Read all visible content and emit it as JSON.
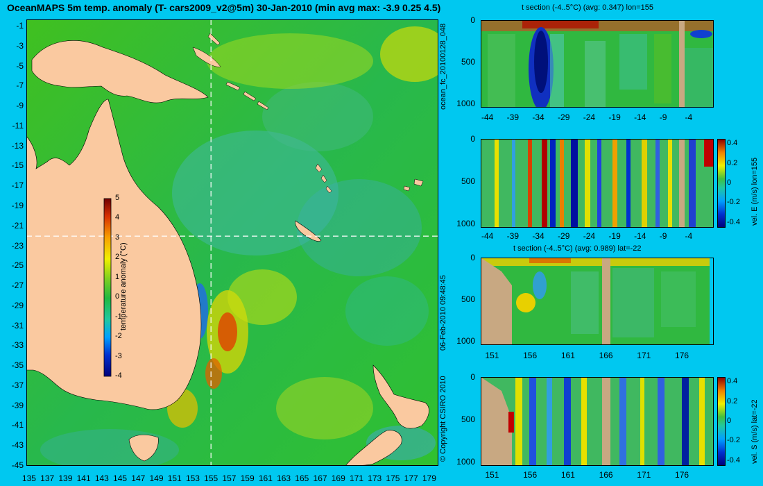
{
  "title": "OceanMAPS 5m temp. anomaly (T- cars2009_v2@5m) 30-Jan-2010 (min avg max: -3.9 0.25 4.5)",
  "map": {
    "lat_ticks": [
      "-1",
      "-3",
      "-5",
      "-7",
      "-9",
      "-11",
      "-13",
      "-15",
      "-17",
      "-19",
      "-21",
      "-23",
      "-25",
      "-27",
      "-29",
      "-31",
      "-33",
      "-35",
      "-37",
      "-39",
      "-41",
      "-43",
      "-45"
    ],
    "lon_ticks": [
      "135",
      "137",
      "139",
      "141",
      "143",
      "145",
      "147",
      "149",
      "151",
      "153",
      "155",
      "157",
      "159",
      "161",
      "163",
      "165",
      "167",
      "169",
      "171",
      "173",
      "175",
      "177",
      "179"
    ],
    "colorbar_ticks": [
      "5",
      "4",
      "3",
      "2",
      "1",
      "0",
      "-1",
      "-2",
      "-3",
      "-4"
    ],
    "colorbar_label": "temperature anomaly (°C)",
    "section_lon": 155,
    "section_lat": -22
  },
  "panels": {
    "p1_title": "t section (-4..5°C) (avg: 0.347) lon=155",
    "p3_title": "t section (-4..5°C) (avg: 0.989) lat=-22",
    "depth_ticks": [
      "0",
      "500",
      "1000"
    ],
    "lon_section_ticks": [
      "-44",
      "-39",
      "-34",
      "-29",
      "-24",
      "-19",
      "-14",
      "-9",
      "-4"
    ],
    "lat_section_ticks": [
      "151",
      "156",
      "161",
      "166",
      "171",
      "176"
    ],
    "vel_ticks": [
      "0.4",
      "0.2",
      "0",
      "-0.2",
      "-0.4"
    ],
    "vel_e_label": "vel. E (m/s) lon=155",
    "vel_s_label": "vel. S (m/s) lat=-22"
  },
  "side_text": {
    "run_id": "ocean_fc_20100128_048",
    "date": "06-Feb-2010 09:48:45",
    "copyright": "© Copyright CSIRO 2010"
  },
  "colors": {
    "background": "#00c8f0",
    "land": "#fac9a0",
    "section_land": "#c8a882",
    "ocean_base": "#22b844"
  }
}
